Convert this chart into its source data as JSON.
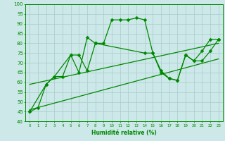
{
  "xlabel": "Humidité relative (%)",
  "xlim": [
    -0.5,
    23.5
  ],
  "ylim": [
    40,
    100
  ],
  "yticks": [
    40,
    45,
    50,
    55,
    60,
    65,
    70,
    75,
    80,
    85,
    90,
    95,
    100
  ],
  "xticks": [
    0,
    1,
    2,
    3,
    4,
    5,
    6,
    7,
    8,
    9,
    10,
    11,
    12,
    13,
    14,
    15,
    16,
    17,
    18,
    19,
    20,
    21,
    22,
    23
  ],
  "bg_color": "#cce8e8",
  "grid_color": "#aacaca",
  "line_color": "#008800",
  "line1_x": [
    0,
    1,
    2,
    3,
    4,
    5,
    6,
    7,
    8,
    9,
    10,
    11,
    12,
    13,
    14,
    15,
    16,
    17,
    18,
    19,
    20,
    21,
    22,
    23
  ],
  "line1_y": [
    45,
    47,
    59,
    63,
    63,
    74,
    65,
    83,
    80,
    80,
    92,
    92,
    92,
    93,
    92,
    75,
    65,
    62,
    61,
    74,
    71,
    76,
    82,
    82
  ],
  "line2_x": [
    0,
    2,
    3,
    5,
    6,
    7,
    8,
    14,
    15,
    16,
    17,
    18,
    19,
    20,
    21,
    22,
    23
  ],
  "line2_y": [
    45,
    59,
    63,
    74,
    74,
    66,
    80,
    75,
    75,
    66,
    62,
    61,
    74,
    71,
    71,
    76,
    82
  ],
  "line3_x": [
    0,
    23
  ],
  "line3_y": [
    46,
    72
  ],
  "line4_x": [
    0,
    23
  ],
  "line4_y": [
    59,
    80
  ]
}
